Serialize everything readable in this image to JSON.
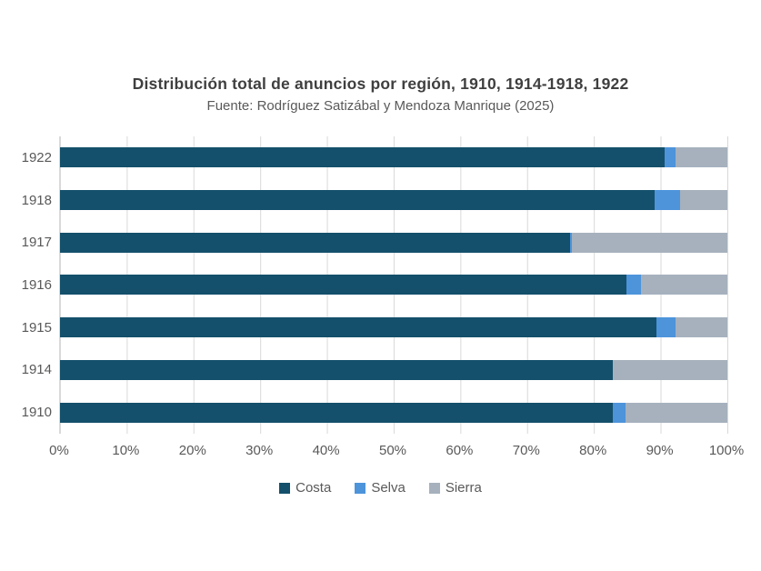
{
  "title": "Distribución total de anuncios por región, 1910, 1914-1918, 1922",
  "subtitle": "Fuente: Rodríguez Satizábal y Mendoza Manrique (2025)",
  "colors": {
    "costa": "#14506B",
    "selva": "#4D94DB",
    "sierra": "#A6B1BD",
    "gridline": "#D9D9D9",
    "title_text": "#3F3F3F",
    "axis_text": "#595959",
    "background": "#FFFFFF"
  },
  "chart_data": {
    "type": "bar",
    "orientation": "horizontal",
    "stacked": true,
    "unit": "percent",
    "title": "Distribución total de anuncios por región, 1910, 1914-1918, 1922",
    "subtitle": "Fuente: Rodríguez Satizábal y Mendoza Manrique (2025)",
    "categories": [
      "1922",
      "1918",
      "1917",
      "1916",
      "1915",
      "1914",
      "1910"
    ],
    "series": [
      {
        "name": "Costa",
        "color": "#14506B",
        "values": [
          90.6,
          89.1,
          76.4,
          84.9,
          89.4,
          82.9,
          82.9
        ]
      },
      {
        "name": "Selva",
        "color": "#4D94DB",
        "values": [
          1.7,
          3.8,
          0.3,
          2.1,
          2.8,
          0.0,
          1.9
        ]
      },
      {
        "name": "Sierra",
        "color": "#A6B1BD",
        "values": [
          7.7,
          7.1,
          23.3,
          13.0,
          7.8,
          17.1,
          15.2
        ]
      }
    ],
    "x_ticks": [
      "0%",
      "10%",
      "20%",
      "30%",
      "40%",
      "50%",
      "60%",
      "70%",
      "80%",
      "90%",
      "100%"
    ],
    "xlim": [
      0,
      100
    ],
    "xlabel": "",
    "ylabel": "",
    "grid": "vertical",
    "legend_position": "bottom"
  }
}
